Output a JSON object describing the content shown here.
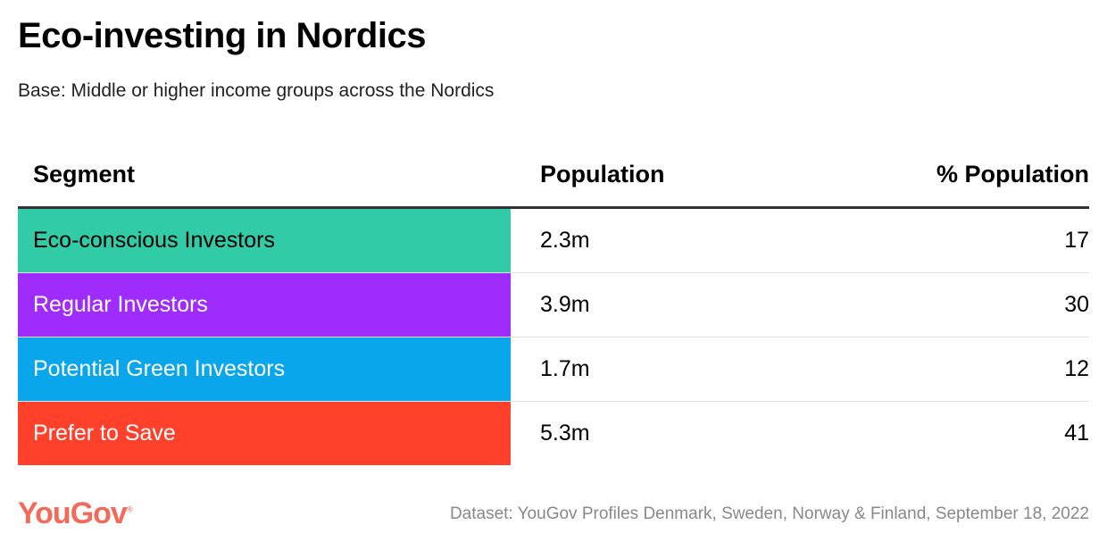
{
  "title": "Eco-investing in Nordics",
  "subtitle": "Base: Middle or higher income groups across the Nordics",
  "chart_data": {
    "type": "table",
    "columns": [
      "Segment",
      "Population",
      "% Population"
    ],
    "rows": [
      {
        "segment": "Eco-conscious Investors",
        "population": "2.3m",
        "pct": "17",
        "color": "#31cba8"
      },
      {
        "segment": "Regular Investors",
        "population": "3.9m",
        "pct": "30",
        "color": "#9f2cfc"
      },
      {
        "segment": "Potential Green Investors",
        "population": "1.7m",
        "pct": "12",
        "color": "#09a6ec"
      },
      {
        "segment": "Prefer to Save",
        "population": "5.3m",
        "pct": "41",
        "color": "#ff412c"
      }
    ]
  },
  "footer": {
    "logo": "YouGov",
    "source": "Dataset: YouGov Profiles Denmark, Sweden, Norway & Finland, September 18, 2022"
  }
}
